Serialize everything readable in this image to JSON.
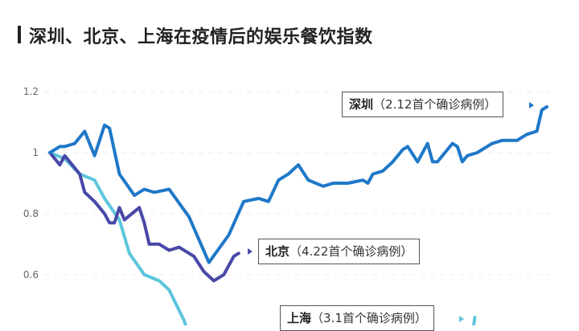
{
  "chart_data": {
    "type": "line",
    "title": "深圳、北京、上海在疫情后的娱乐餐饮指数",
    "xlabel": "",
    "ylabel": "",
    "ylim": [
      0.434,
      1.25
    ],
    "xlim": [
      0,
      100
    ],
    "yticks": [
      "1.2",
      "1",
      "0.8",
      "0.6"
    ],
    "ytick_values": [
      1.2,
      1.0,
      0.8,
      0.6
    ],
    "grid": true,
    "series": [
      {
        "name": "深圳",
        "annotation": "（2.12首个确诊病例）",
        "color": "#1f78c8",
        "points": [
          [
            0,
            1.0
          ],
          [
            2,
            1.02
          ],
          [
            3,
            1.02
          ],
          [
            5,
            1.03
          ],
          [
            7,
            1.07
          ],
          [
            9,
            0.99
          ],
          [
            11,
            1.09
          ],
          [
            12,
            1.08
          ],
          [
            14,
            0.93
          ],
          [
            17,
            0.86
          ],
          [
            19,
            0.88
          ],
          [
            21,
            0.87
          ],
          [
            24,
            0.88
          ],
          [
            28,
            0.79
          ],
          [
            32,
            0.64
          ],
          [
            36,
            0.73
          ],
          [
            39,
            0.84
          ],
          [
            42,
            0.85
          ],
          [
            44,
            0.84
          ],
          [
            46,
            0.91
          ],
          [
            48,
            0.93
          ],
          [
            50,
            0.96
          ],
          [
            52,
            0.91
          ],
          [
            55,
            0.89
          ],
          [
            57,
            0.9
          ],
          [
            60,
            0.9
          ],
          [
            63,
            0.91
          ],
          [
            64,
            0.9
          ],
          [
            65,
            0.93
          ],
          [
            67,
            0.94
          ],
          [
            69,
            0.97
          ],
          [
            71,
            1.01
          ],
          [
            72,
            1.02
          ],
          [
            74,
            0.97
          ],
          [
            76,
            1.03
          ],
          [
            77,
            0.97
          ],
          [
            78,
            0.97
          ],
          [
            81,
            1.03
          ],
          [
            82,
            1.02
          ],
          [
            83,
            0.97
          ],
          [
            84,
            0.99
          ],
          [
            86,
            1.0
          ],
          [
            89,
            1.03
          ],
          [
            91,
            1.04
          ],
          [
            94,
            1.04
          ],
          [
            96,
            1.06
          ],
          [
            98,
            1.07
          ],
          [
            99,
            1.14
          ],
          [
            100,
            1.15
          ]
        ]
      },
      {
        "name": "北京",
        "annotation": "（4.22首个确诊病例）",
        "color": "#4848a8",
        "points": [
          [
            0,
            1.0
          ],
          [
            2,
            0.96
          ],
          [
            3,
            0.99
          ],
          [
            4,
            0.97
          ],
          [
            6,
            0.93
          ],
          [
            7,
            0.87
          ],
          [
            9,
            0.84
          ],
          [
            11,
            0.8
          ],
          [
            12,
            0.77
          ],
          [
            13,
            0.77
          ],
          [
            14,
            0.82
          ],
          [
            15,
            0.78
          ],
          [
            18,
            0.82
          ],
          [
            19,
            0.77
          ],
          [
            20,
            0.7
          ],
          [
            22,
            0.7
          ],
          [
            24,
            0.68
          ],
          [
            26,
            0.69
          ],
          [
            29,
            0.66
          ],
          [
            31,
            0.61
          ],
          [
            33,
            0.58
          ],
          [
            35,
            0.6
          ],
          [
            37,
            0.66
          ],
          [
            38,
            0.67
          ]
        ]
      },
      {
        "name": "上海",
        "annotation": "（3.1首个确诊病例）",
        "color": "#5cc6dc",
        "points": [
          [
            0,
            1.0
          ],
          [
            3,
            0.98
          ],
          [
            6,
            0.93
          ],
          [
            9,
            0.91
          ],
          [
            11,
            0.85
          ],
          [
            14,
            0.78
          ],
          [
            16,
            0.67
          ],
          [
            19,
            0.6
          ],
          [
            22,
            0.58
          ],
          [
            24,
            0.55
          ],
          [
            27,
            0.45
          ],
          [
            28,
            0.4
          ],
          null,
          [
            85,
            0.4
          ],
          [
            85.5,
            0.46
          ]
        ]
      }
    ]
  }
}
